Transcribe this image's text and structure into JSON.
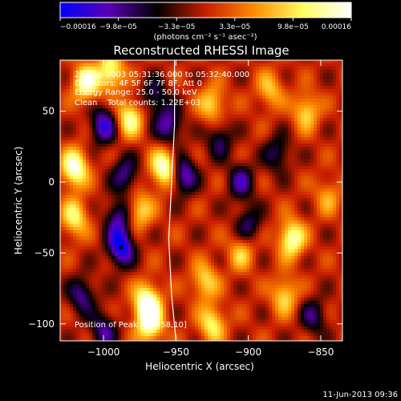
{
  "chart_data": {
    "type": "heatmap",
    "title": "Reconstructed RHESSI Image",
    "xlabel": "Heliocentric X (arcsec)",
    "ylabel": "Heliocentric Y (arcsec)",
    "xlim": [
      -1030,
      -835
    ],
    "ylim": [
      -112,
      86
    ],
    "x_ticks": [
      -1000,
      -950,
      -900,
      -850
    ],
    "x_tick_labels": [
      "−1000",
      "−950",
      "−900",
      "−850"
    ],
    "y_ticks": [
      -100,
      -50,
      0,
      50
    ],
    "y_tick_labels": [
      "−100",
      "−50",
      "0",
      "50"
    ],
    "colorbar": {
      "min": -0.00016,
      "max": 0.00016,
      "tick_labels": [
        "−0.00016",
        "−9.8e−05",
        "−3.3e−05",
        "3.3e−05",
        "9.8e−05",
        "0.00016"
      ],
      "unit_label": "(photons cm⁻² s⁻¹ asec⁻²)",
      "colors": [
        "#0000ff",
        "#5a00b4",
        "#000000",
        "#c81e00",
        "#ff8c00",
        "#ffff60",
        "#ffffff"
      ]
    },
    "annotations": [
      "21-Sep-2003 05:31:36.000 to 05:32:40.000",
      "Detectors: 4F 5F 6F 7F 8F, Att 0",
      "Energy Range: 25.0 - 50.0 keV",
      "Clean    Total counts: 1.22E+03"
    ],
    "peak_label": "Position of Peak = [-958,10]",
    "peak": [
      -958,
      10
    ],
    "min_marker": [
      -988,
      -46
    ],
    "blobs": [
      {
        "x": -1020,
        "y": 10,
        "v": 1.0
      },
      {
        "x": -1020,
        "y": -25,
        "v": 0.7
      },
      {
        "x": -1012,
        "y": 70,
        "v": 0.9
      },
      {
        "x": -1000,
        "y": 40,
        "v": -0.8
      },
      {
        "x": -995,
        "y": 78,
        "v": 0.8
      },
      {
        "x": -982,
        "y": 45,
        "v": 0.8
      },
      {
        "x": -958,
        "y": 10,
        "v": 1.0
      },
      {
        "x": -985,
        "y": 5,
        "v": -0.6
      },
      {
        "x": -955,
        "y": 40,
        "v": -0.7
      },
      {
        "x": -965,
        "y": 60,
        "v": -0.5
      },
      {
        "x": -945,
        "y": 5,
        "v": -0.8
      },
      {
        "x": -990,
        "y": -25,
        "v": -0.6
      },
      {
        "x": -988,
        "y": -46,
        "v": -1.0
      },
      {
        "x": -975,
        "y": -20,
        "v": 0.6
      },
      {
        "x": -1015,
        "y": -80,
        "v": -0.6
      },
      {
        "x": -970,
        "y": -85,
        "v": 1.0
      },
      {
        "x": -968,
        "y": -100,
        "v": 0.9
      },
      {
        "x": -1000,
        "y": -105,
        "v": -0.6
      },
      {
        "x": -930,
        "y": -70,
        "v": 0.6
      },
      {
        "x": -925,
        "y": -100,
        "v": 0.7
      },
      {
        "x": -925,
        "y": 55,
        "v": 0.6
      },
      {
        "x": -920,
        "y": 30,
        "v": -0.5
      },
      {
        "x": -905,
        "y": -50,
        "v": 0.5
      },
      {
        "x": -905,
        "y": 0,
        "v": -0.6
      },
      {
        "x": -900,
        "y": -30,
        "v": -0.5
      },
      {
        "x": -885,
        "y": 65,
        "v": 0.5
      },
      {
        "x": -880,
        "y": 20,
        "v": -0.5
      },
      {
        "x": -870,
        "y": -40,
        "v": 0.9
      },
      {
        "x": -875,
        "y": -80,
        "v": 0.6
      },
      {
        "x": -860,
        "y": 50,
        "v": 0.6
      },
      {
        "x": -855,
        "y": -95,
        "v": -0.5
      },
      {
        "x": -845,
        "y": -10,
        "v": 0.4
      }
    ],
    "limb_path": [
      [
        -951,
        86
      ],
      [
        -951,
        40
      ],
      [
        -953,
        0
      ],
      [
        -955,
        -40
      ],
      [
        -953,
        -80
      ],
      [
        -950,
        -112
      ]
    ]
  },
  "footer": {
    "date": "11-Jun-2013 09:36"
  }
}
